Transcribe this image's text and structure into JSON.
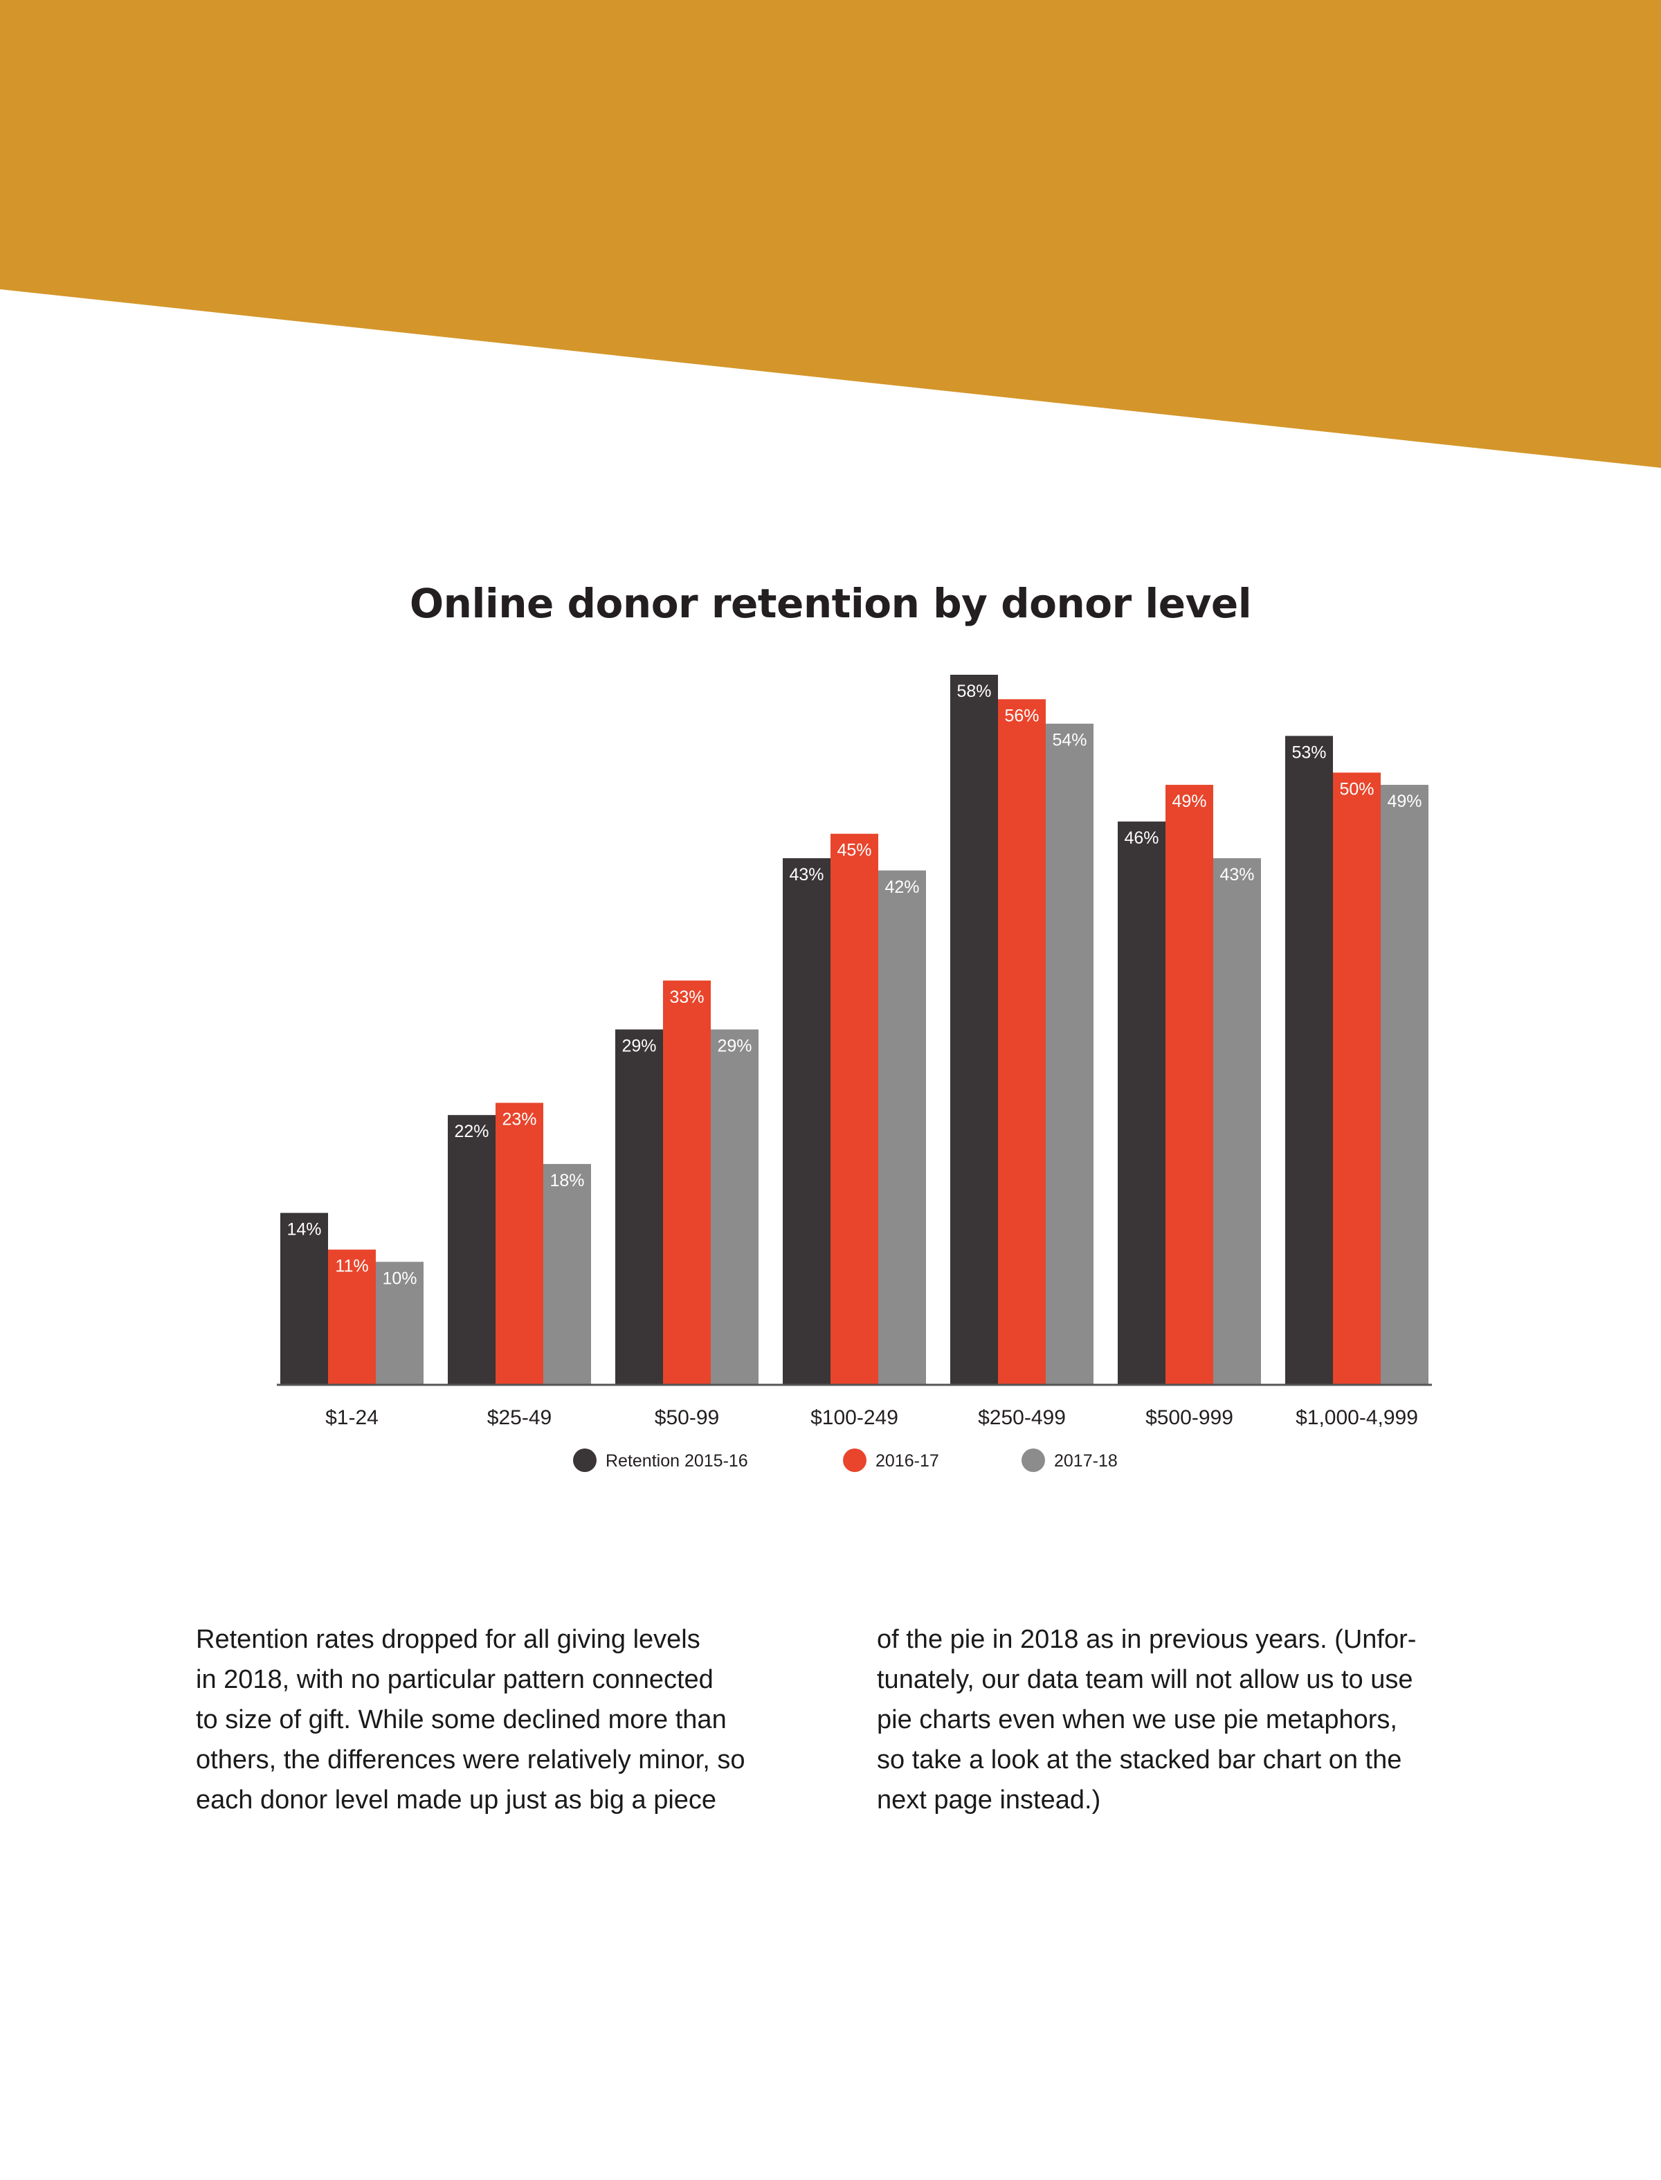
{
  "colors": {
    "banner": "#d4962a",
    "series": [
      "#3a3536",
      "#e8452c",
      "#8c8c8c"
    ],
    "axis": "#555555"
  },
  "chart_data": {
    "type": "bar",
    "title": "Online donor retention by donor level",
    "categories": [
      "$1-24",
      "$25-49",
      "$50-99",
      "$100-249",
      "$250-499",
      "$500-999",
      "$1,000-4,999"
    ],
    "series": [
      {
        "name": "Retention 2015-16",
        "values": [
          14,
          22,
          29,
          43,
          58,
          46,
          53
        ]
      },
      {
        "name": "2016-17",
        "values": [
          11,
          23,
          33,
          45,
          56,
          49,
          50
        ]
      },
      {
        "name": "2017-18",
        "values": [
          10,
          18,
          29,
          42,
          54,
          43,
          49
        ]
      }
    ],
    "value_suffix": "%",
    "ylim": [
      0,
      58
    ],
    "xlabel": "",
    "ylabel": "",
    "grid": false,
    "legend": "bottom"
  },
  "body": {
    "left_lines": [
      "Retention rates dropped for all giving levels",
      "in 2018, with no particular pattern connected",
      "to size of gift. While some declined more than",
      "others, the differences were relatively minor, so",
      "each donor level made up just as big a piece"
    ],
    "right_lines": [
      "of the pie in 2018 as in previous years. (Unfor-",
      "tunately, our data team will not allow us to use",
      "pie charts even when we use pie metaphors,",
      "so take a look at the stacked bar chart on the",
      "next page instead.)"
    ]
  }
}
